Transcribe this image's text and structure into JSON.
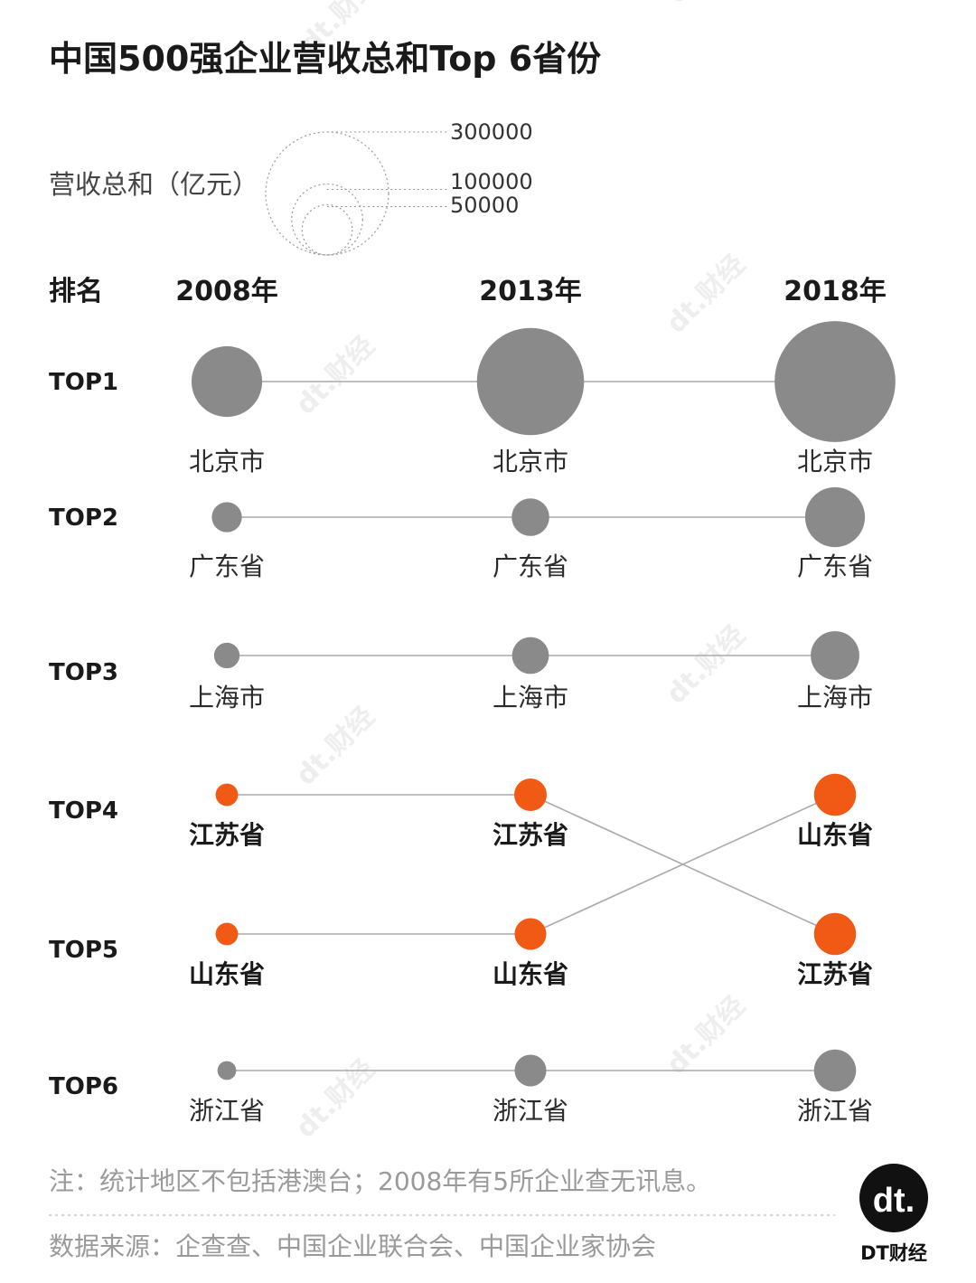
{
  "watermark": "dt.财经",
  "chart_data": {
    "type": "bubble-rank",
    "title": "中国500强企业营收总和Top 6省份",
    "size_legend": {
      "label": "营收总和（亿元）",
      "values": [
        300000,
        100000,
        50000
      ]
    },
    "rank_header": "排名",
    "years": [
      "2008年",
      "2013年",
      "2018年"
    ],
    "ranks": [
      "TOP1",
      "TOP2",
      "TOP3",
      "TOP4",
      "TOP5",
      "TOP6"
    ],
    "rows": [
      {
        "rank": "TOP1",
        "entries": [
          {
            "province": "北京市",
            "revenue": 99000
          },
          {
            "province": "北京市",
            "revenue": 228000
          },
          {
            "province": "北京市",
            "revenue": 290000
          }
        ]
      },
      {
        "rank": "TOP2",
        "entries": [
          {
            "province": "广东省",
            "revenue": 18000
          },
          {
            "province": "广东省",
            "revenue": 28000
          },
          {
            "province": "广东省",
            "revenue": 71000
          }
        ]
      },
      {
        "rank": "TOP3",
        "entries": [
          {
            "province": "上海市",
            "revenue": 13000
          },
          {
            "province": "上海市",
            "revenue": 27000
          },
          {
            "province": "上海市",
            "revenue": 47000
          }
        ]
      },
      {
        "rank": "TOP4",
        "entries": [
          {
            "province": "江苏省",
            "revenue": 10000
          },
          {
            "province": "江苏省",
            "revenue": 21000
          },
          {
            "province": "山东省",
            "revenue": 35000
          }
        ]
      },
      {
        "rank": "TOP5",
        "entries": [
          {
            "province": "山东省",
            "revenue": 10000
          },
          {
            "province": "山东省",
            "revenue": 20000
          },
          {
            "province": "江苏省",
            "revenue": 35000
          }
        ]
      },
      {
        "rank": "TOP6",
        "entries": [
          {
            "province": "浙江省",
            "revenue": 7000
          },
          {
            "province": "浙江省",
            "revenue": 20000
          },
          {
            "province": "浙江省",
            "revenue": 35000
          }
        ]
      }
    ],
    "highlight_provinces": [
      "江苏省",
      "山东省"
    ],
    "colors": {
      "default": "#8a8a8a",
      "highlight": "#f05a14",
      "line": "#aaaaaa"
    }
  },
  "footer": {
    "note": "注：统计地区不包括港澳台；2008年有5所企业查无讯息。",
    "source": "数据来源：企查查、中国企业联合会、中国企业家协会"
  },
  "brand": {
    "logo_text": "dt.",
    "name": "DT财经"
  }
}
